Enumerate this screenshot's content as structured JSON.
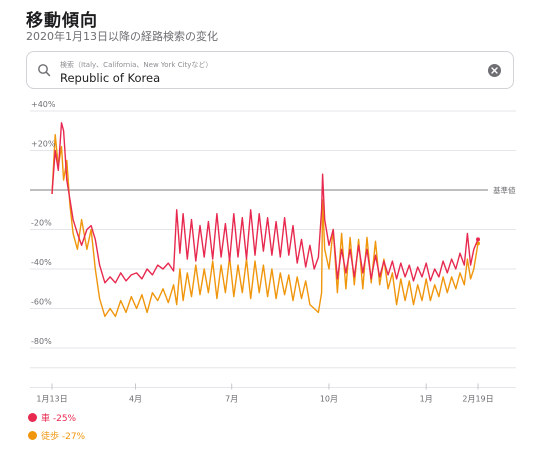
{
  "page": {
    "title": "移動傾向",
    "subtitle": "2020年1月13日以降の経路検索の変化"
  },
  "search": {
    "placeholder": "検索（Italy、California、New York Cityなど）",
    "value": "Republic of Korea"
  },
  "colors": {
    "driving": "#e8294f",
    "walking": "#f0960c",
    "baseline": "#555555"
  },
  "chart_data": {
    "type": "line",
    "y_tick_labels": [
      "+40%",
      "+20%",
      "-20%",
      "-40%",
      "-60%",
      "-80%"
    ],
    "y_ticks": [
      40,
      20,
      -20,
      -40,
      -60,
      -80
    ],
    "ylim": [
      -100,
      40
    ],
    "baseline_label": "基準値",
    "x_tick_labels": [
      "1月13日",
      "4月",
      "7月",
      "10月",
      "1月",
      "2月19日"
    ],
    "x_ticks": [
      0,
      79,
      170,
      262,
      354,
      403
    ],
    "xlim": [
      0,
      403
    ],
    "series": [
      {
        "name": "車",
        "legend_label": "車 -25%",
        "color": "#e8294f",
        "points": [
          [
            0,
            -2
          ],
          [
            3,
            20
          ],
          [
            6,
            10
          ],
          [
            9,
            34
          ],
          [
            11,
            30
          ],
          [
            14,
            5
          ],
          [
            17,
            -5
          ],
          [
            20,
            -15
          ],
          [
            24,
            -22
          ],
          [
            28,
            -28
          ],
          [
            33,
            -20
          ],
          [
            37,
            -18
          ],
          [
            41,
            -25
          ],
          [
            45,
            -38
          ],
          [
            50,
            -47
          ],
          [
            55,
            -44
          ],
          [
            60,
            -47
          ],
          [
            65,
            -42
          ],
          [
            70,
            -46
          ],
          [
            75,
            -43
          ],
          [
            80,
            -42
          ],
          [
            85,
            -45
          ],
          [
            90,
            -40
          ],
          [
            95,
            -43
          ],
          [
            100,
            -38
          ],
          [
            105,
            -40
          ],
          [
            110,
            -37
          ],
          [
            115,
            -41
          ],
          [
            118,
            -10
          ],
          [
            121,
            -32
          ],
          [
            124,
            -12
          ],
          [
            128,
            -35
          ],
          [
            132,
            -15
          ],
          [
            136,
            -36
          ],
          [
            140,
            -18
          ],
          [
            144,
            -34
          ],
          [
            148,
            -16
          ],
          [
            152,
            -35
          ],
          [
            156,
            -12
          ],
          [
            160,
            -34
          ],
          [
            164,
            -17
          ],
          [
            168,
            -36
          ],
          [
            172,
            -12
          ],
          [
            176,
            -34
          ],
          [
            180,
            -14
          ],
          [
            184,
            -35
          ],
          [
            188,
            -10
          ],
          [
            192,
            -33
          ],
          [
            196,
            -12
          ],
          [
            200,
            -31
          ],
          [
            204,
            -14
          ],
          [
            208,
            -33
          ],
          [
            212,
            -16
          ],
          [
            216,
            -34
          ],
          [
            220,
            -14
          ],
          [
            224,
            -33
          ],
          [
            228,
            -18
          ],
          [
            232,
            -37
          ],
          [
            236,
            -25
          ],
          [
            240,
            -39
          ],
          [
            244,
            -28
          ],
          [
            248,
            -40
          ],
          [
            252,
            -34
          ],
          [
            255,
            -10
          ],
          [
            256,
            8
          ],
          [
            258,
            -15
          ],
          [
            262,
            -28
          ],
          [
            266,
            -20
          ],
          [
            270,
            -45
          ],
          [
            274,
            -30
          ],
          [
            278,
            -42
          ],
          [
            282,
            -30
          ],
          [
            286,
            -44
          ],
          [
            290,
            -28
          ],
          [
            294,
            -42
          ],
          [
            298,
            -30
          ],
          [
            302,
            -45
          ],
          [
            306,
            -33
          ],
          [
            310,
            -44
          ],
          [
            314,
            -36
          ],
          [
            318,
            -43
          ],
          [
            322,
            -36
          ],
          [
            326,
            -45
          ],
          [
            330,
            -37
          ],
          [
            334,
            -44
          ],
          [
            338,
            -38
          ],
          [
            342,
            -46
          ],
          [
            346,
            -39
          ],
          [
            350,
            -44
          ],
          [
            354,
            -37
          ],
          [
            358,
            -46
          ],
          [
            362,
            -40
          ],
          [
            366,
            -44
          ],
          [
            370,
            -36
          ],
          [
            374,
            -42
          ],
          [
            378,
            -35
          ],
          [
            382,
            -40
          ],
          [
            386,
            -32
          ],
          [
            390,
            -38
          ],
          [
            393,
            -22
          ],
          [
            396,
            -38
          ],
          [
            399,
            -30
          ],
          [
            403,
            -25
          ]
        ]
      },
      {
        "name": "徒歩",
        "legend_label": "徒歩 -27%",
        "color": "#f0960c",
        "points": [
          [
            0,
            -2
          ],
          [
            3,
            28
          ],
          [
            6,
            12
          ],
          [
            9,
            22
          ],
          [
            11,
            5
          ],
          [
            14,
            15
          ],
          [
            17,
            -8
          ],
          [
            20,
            -22
          ],
          [
            24,
            -30
          ],
          [
            28,
            -15
          ],
          [
            33,
            -30
          ],
          [
            37,
            -20
          ],
          [
            41,
            -40
          ],
          [
            45,
            -55
          ],
          [
            50,
            -64
          ],
          [
            55,
            -60
          ],
          [
            60,
            -64
          ],
          [
            65,
            -56
          ],
          [
            70,
            -62
          ],
          [
            75,
            -54
          ],
          [
            80,
            -60
          ],
          [
            85,
            -53
          ],
          [
            90,
            -62
          ],
          [
            95,
            -52
          ],
          [
            100,
            -56
          ],
          [
            105,
            -50
          ],
          [
            110,
            -57
          ],
          [
            115,
            -48
          ],
          [
            118,
            -58
          ],
          [
            121,
            -40
          ],
          [
            124,
            -56
          ],
          [
            128,
            -42
          ],
          [
            132,
            -54
          ],
          [
            136,
            -38
          ],
          [
            140,
            -53
          ],
          [
            144,
            -40
          ],
          [
            148,
            -52
          ],
          [
            152,
            -36
          ],
          [
            156,
            -55
          ],
          [
            160,
            -38
          ],
          [
            164,
            -52
          ],
          [
            168,
            -34
          ],
          [
            172,
            -54
          ],
          [
            176,
            -38
          ],
          [
            180,
            -52
          ],
          [
            184,
            -35
          ],
          [
            188,
            -55
          ],
          [
            192,
            -36
          ],
          [
            196,
            -52
          ],
          [
            200,
            -38
          ],
          [
            204,
            -54
          ],
          [
            208,
            -40
          ],
          [
            212,
            -55
          ],
          [
            216,
            -42
          ],
          [
            220,
            -53
          ],
          [
            224,
            -43
          ],
          [
            228,
            -56
          ],
          [
            232,
            -44
          ],
          [
            236,
            -55
          ],
          [
            240,
            -46
          ],
          [
            244,
            -58
          ],
          [
            248,
            -60
          ],
          [
            252,
            -62
          ],
          [
            255,
            -52
          ],
          [
            256,
            -5
          ],
          [
            258,
            -30
          ],
          [
            262,
            -40
          ],
          [
            266,
            -20
          ],
          [
            270,
            -52
          ],
          [
            274,
            -22
          ],
          [
            278,
            -50
          ],
          [
            282,
            -24
          ],
          [
            286,
            -48
          ],
          [
            290,
            -25
          ],
          [
            294,
            -50
          ],
          [
            298,
            -24
          ],
          [
            302,
            -47
          ],
          [
            306,
            -26
          ],
          [
            310,
            -48
          ],
          [
            314,
            -35
          ],
          [
            318,
            -50
          ],
          [
            322,
            -42
          ],
          [
            326,
            -58
          ],
          [
            330,
            -45
          ],
          [
            334,
            -56
          ],
          [
            338,
            -46
          ],
          [
            342,
            -58
          ],
          [
            346,
            -48
          ],
          [
            350,
            -56
          ],
          [
            354,
            -45
          ],
          [
            358,
            -56
          ],
          [
            362,
            -48
          ],
          [
            366,
            -54
          ],
          [
            370,
            -44
          ],
          [
            374,
            -52
          ],
          [
            378,
            -44
          ],
          [
            382,
            -50
          ],
          [
            386,
            -42
          ],
          [
            390,
            -48
          ],
          [
            393,
            -35
          ],
          [
            396,
            -45
          ],
          [
            399,
            -40
          ],
          [
            403,
            -27
          ]
        ]
      }
    ]
  }
}
